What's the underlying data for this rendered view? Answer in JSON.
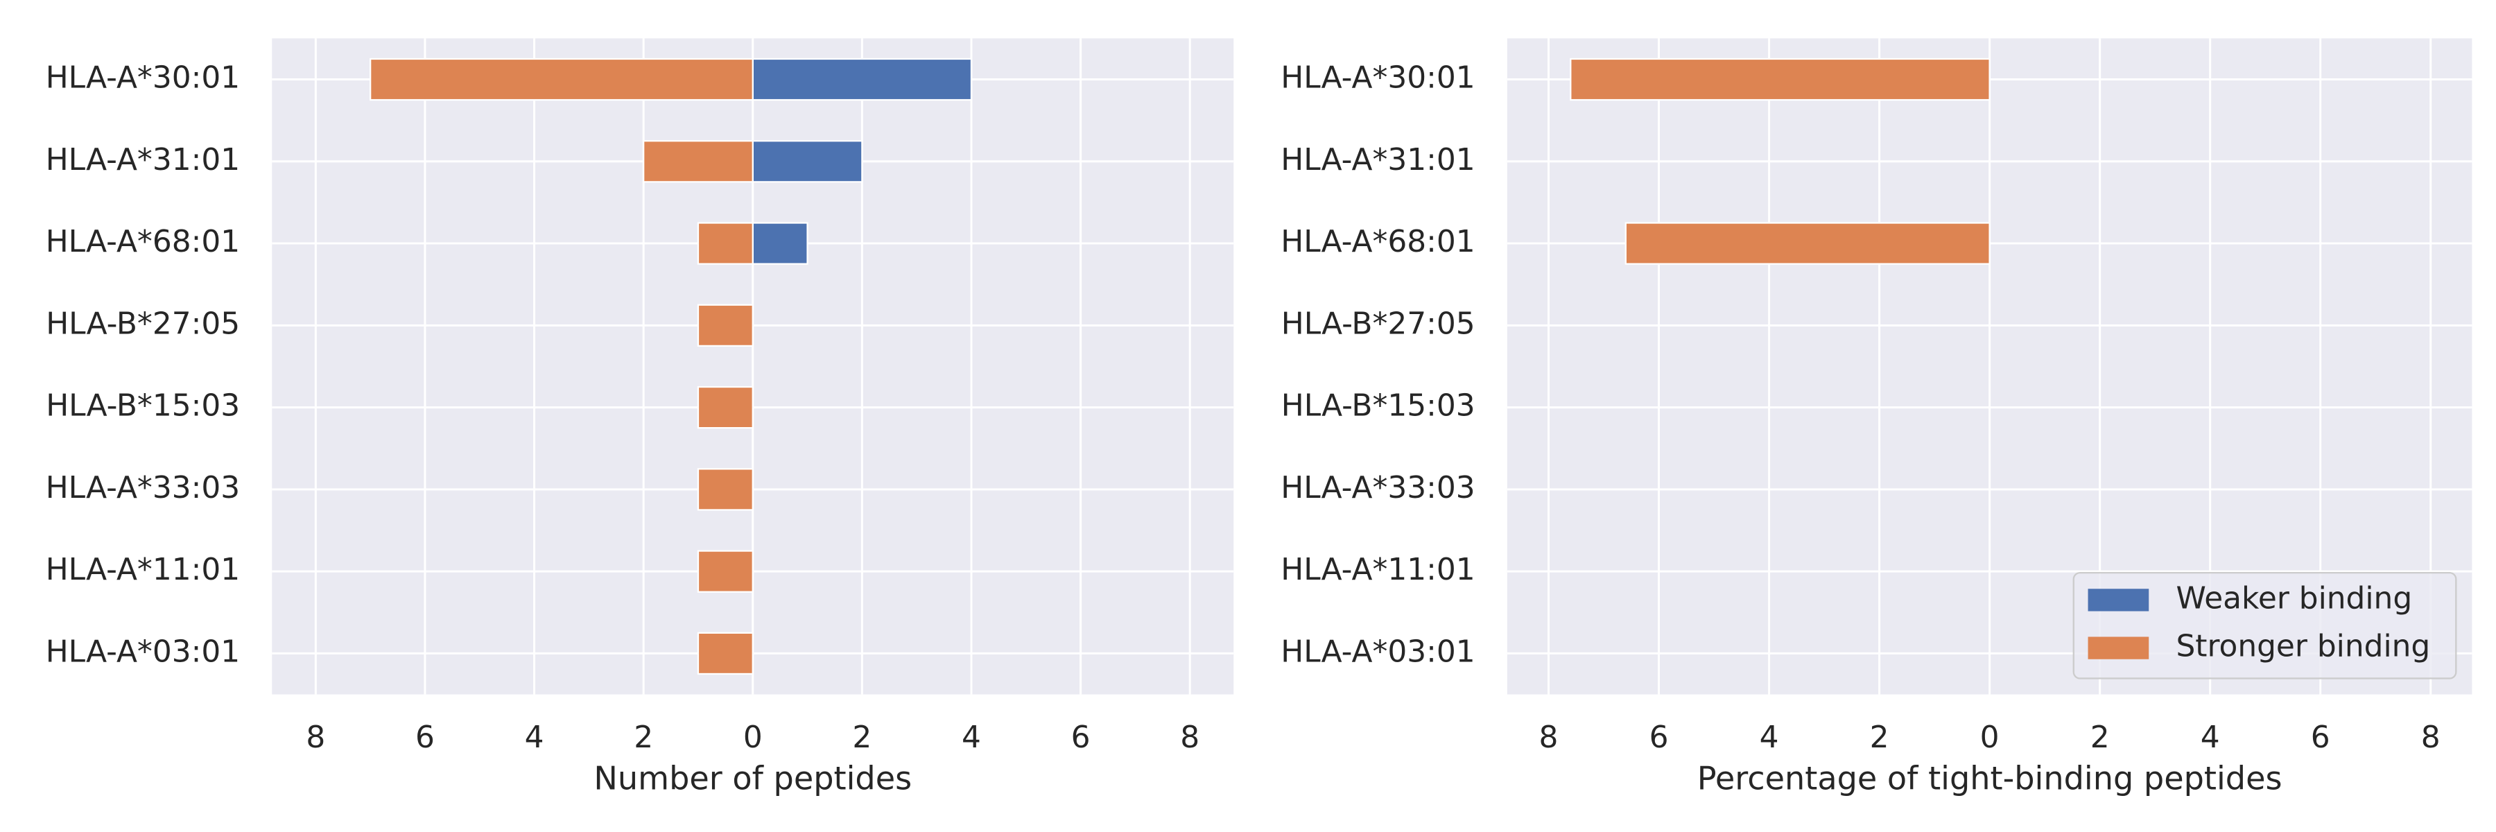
{
  "chart_data": [
    {
      "type": "bar",
      "categories": [
        "HLA-A*30:01",
        "HLA-A*31:01",
        "HLA-A*68:01",
        "HLA-B*27:05",
        "HLA-B*15:03",
        "HLA-A*33:03",
        "HLA-A*11:01",
        "HLA-A*03:01"
      ],
      "series": [
        {
          "color": "#4c72b0",
          "values": [
            4,
            2,
            1,
            0,
            0,
            0,
            0,
            0
          ]
        },
        {
          "color": "#dd8452",
          "values": [
            -7,
            -2,
            -1,
            -1,
            -1,
            -1,
            -1,
            -1
          ]
        }
      ],
      "xlabel": "Number of peptides",
      "xlim": [
        -8.8,
        8.8
      ],
      "xticks": [
        {
          "value": -8,
          "label": "8"
        },
        {
          "value": -6,
          "label": "6"
        },
        {
          "value": -4,
          "label": "4"
        },
        {
          "value": -2,
          "label": "2"
        },
        0,
        2,
        4,
        6,
        8
      ],
      "grid": true
    },
    {
      "type": "bar",
      "categories": [
        "HLA-A*30:01",
        "HLA-A*31:01",
        "HLA-A*68:01",
        "HLA-B*27:05",
        "HLA-B*15:03",
        "HLA-A*33:03",
        "HLA-A*11:01",
        "HLA-A*03:01"
      ],
      "series": [
        {
          "name": "Weaker binding",
          "color": "#4c72b0",
          "values": [
            0,
            0,
            0,
            0,
            0,
            0,
            0,
            0
          ]
        },
        {
          "name": "Stronger binding",
          "color": "#dd8452",
          "values": [
            -7.6,
            0,
            -6.6,
            0,
            0,
            0,
            0,
            0
          ]
        }
      ],
      "xlabel": "Percentage of tight-binding peptides",
      "xlim": [
        -8.75,
        8.75
      ],
      "xticks": [
        {
          "value": -8,
          "label": "8"
        },
        {
          "value": -6,
          "label": "6"
        },
        {
          "value": -4,
          "label": "4"
        },
        {
          "value": -2,
          "label": "2"
        },
        0,
        2,
        4,
        6,
        8
      ],
      "grid": true,
      "legend": "lower right"
    }
  ]
}
